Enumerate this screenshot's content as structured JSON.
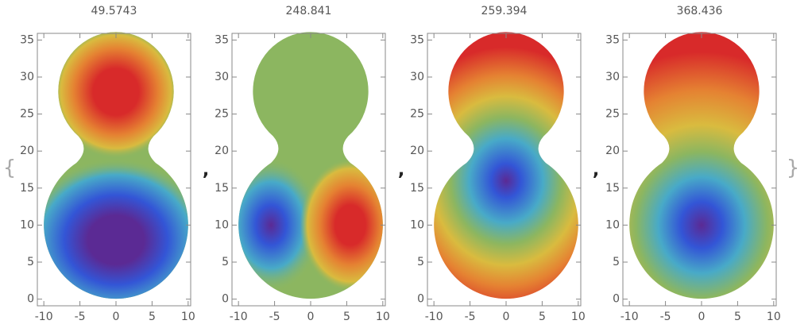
{
  "open_brace": "{",
  "close_brace": "}",
  "separators": [
    ",",
    ",",
    ","
  ],
  "chart_data": [
    {
      "type": "density",
      "title": "49.5743",
      "xlim": [
        -10.9,
        10.35
      ],
      "ylim": [
        -0.9,
        35.9
      ],
      "xticks": [
        -10,
        -5,
        0,
        5,
        10
      ],
      "yticks": [
        0,
        5,
        10,
        15,
        20,
        25,
        30,
        35
      ]
    },
    {
      "type": "density",
      "title": "248.841",
      "xlim": [
        -10.9,
        10.35
      ],
      "ylim": [
        -0.9,
        35.9
      ],
      "xticks": [
        -10,
        -5,
        0,
        5,
        10
      ],
      "yticks": [
        0,
        5,
        10,
        15,
        20,
        25,
        30,
        35
      ]
    },
    {
      "type": "density",
      "title": "259.394",
      "xlim": [
        -10.9,
        10.35
      ],
      "ylim": [
        -0.9,
        35.9
      ],
      "xticks": [
        -10,
        -5,
        0,
        5,
        10
      ],
      "yticks": [
        0,
        5,
        10,
        15,
        20,
        25,
        30,
        35
      ]
    },
    {
      "type": "density",
      "title": "368.436",
      "xlim": [
        -10.9,
        10.35
      ],
      "ylim": [
        -0.9,
        35.9
      ],
      "xticks": [
        -10,
        -5,
        0,
        5,
        10
      ],
      "yticks": [
        0,
        5,
        10,
        15,
        20,
        25,
        30,
        35
      ]
    }
  ]
}
